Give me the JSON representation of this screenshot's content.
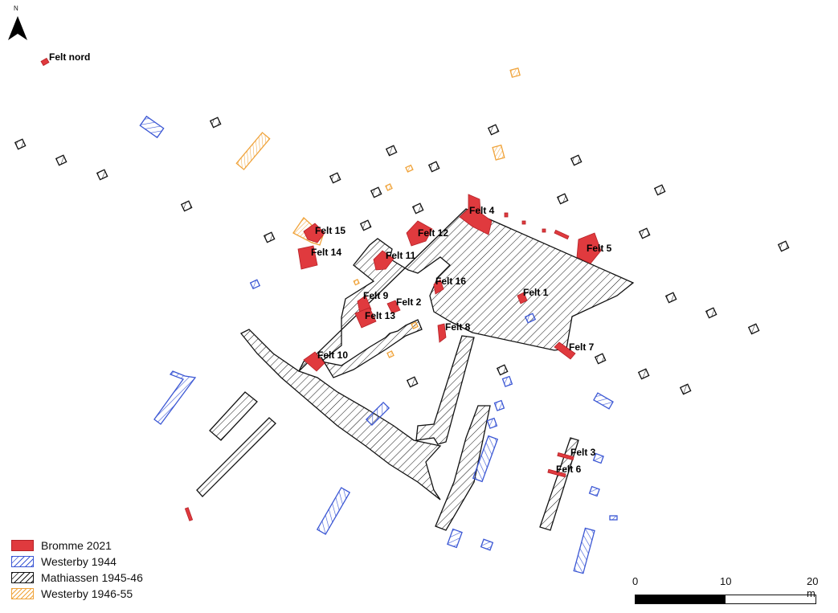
{
  "north_label": "N",
  "felt_labels": [
    {
      "id": "felt-nord",
      "text": "Felt nord"
    },
    {
      "id": "felt-15",
      "text": "Felt 15"
    },
    {
      "id": "felt-14",
      "text": "Felt 14"
    },
    {
      "id": "felt-4",
      "text": "Felt 4"
    },
    {
      "id": "felt-12",
      "text": "Felt 12"
    },
    {
      "id": "felt-11",
      "text": "Felt 11"
    },
    {
      "id": "felt-5",
      "text": "Felt 5"
    },
    {
      "id": "felt-16",
      "text": "Felt 16"
    },
    {
      "id": "felt-1",
      "text": "Felt 1"
    },
    {
      "id": "felt-9",
      "text": "Felt 9"
    },
    {
      "id": "felt-2",
      "text": "Felt 2"
    },
    {
      "id": "felt-13",
      "text": "Felt 13"
    },
    {
      "id": "felt-8",
      "text": "Felt 8"
    },
    {
      "id": "felt-7",
      "text": "Felt 7"
    },
    {
      "id": "felt-10",
      "text": "Felt 10"
    },
    {
      "id": "felt-3",
      "text": "Felt 3"
    },
    {
      "id": "felt-6",
      "text": "Felt 6"
    }
  ],
  "legend": [
    {
      "label": "Bromme 2021",
      "style": "red",
      "color": "#e03a3e"
    },
    {
      "label": "Westerby 1944",
      "style": "blue",
      "color": "#3b57d4"
    },
    {
      "label": "Mathiassen 1945-46",
      "style": "black",
      "color": "#111111"
    },
    {
      "label": "Westerby 1946-55",
      "style": "orange",
      "color": "#f0a33a"
    }
  ],
  "scalebar": {
    "ticks": [
      "0",
      "10",
      "20 m"
    ]
  },
  "colors": {
    "red_fill": "#e03a3e",
    "blue": "#3b57d4",
    "black": "#111111",
    "orange": "#f0a33a"
  }
}
